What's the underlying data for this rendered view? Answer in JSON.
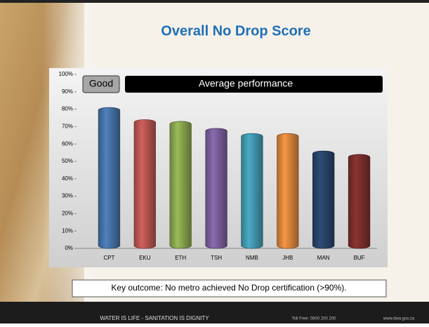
{
  "chart_data": {
    "type": "bar",
    "title": "Overall No Drop Score",
    "categories": [
      "CPT",
      "EKU",
      "ETH",
      "TSH",
      "NMB",
      "JHB",
      "MAN",
      "BUF"
    ],
    "values": [
      81,
      74,
      73,
      69,
      66,
      66,
      56,
      54
    ],
    "colors": [
      "#4f81bd",
      "#d0605c",
      "#9bbb59",
      "#8a6bb0",
      "#4bacc6",
      "#f79646",
      "#2c4d75",
      "#8b3432"
    ],
    "ylim": [
      0,
      100
    ],
    "yticks": [
      {
        "value": 0,
        "label": "0%"
      },
      {
        "value": 10,
        "label": "10%"
      },
      {
        "value": 20,
        "label": "20%"
      },
      {
        "value": 30,
        "label": "30%"
      },
      {
        "value": 40,
        "label": "40%"
      },
      {
        "value": 50,
        "label": "50%"
      },
      {
        "value": 60,
        "label": "60%"
      },
      {
        "value": 70,
        "label": "70%"
      },
      {
        "value": 80,
        "label": "80%"
      },
      {
        "value": 90,
        "label": "90%"
      },
      {
        "value": 100,
        "label": "100%"
      }
    ],
    "annotations": [
      "Good",
      "Average performance"
    ],
    "note": "Key outcome: No metro achieved No Drop certification (>90%).",
    "footer": {
      "slogan": "WATER IS LIFE - SANITATION IS DIGNITY",
      "phone": "Toll Free: 0800 200 200",
      "website": "www.dwa.gov.za"
    }
  }
}
